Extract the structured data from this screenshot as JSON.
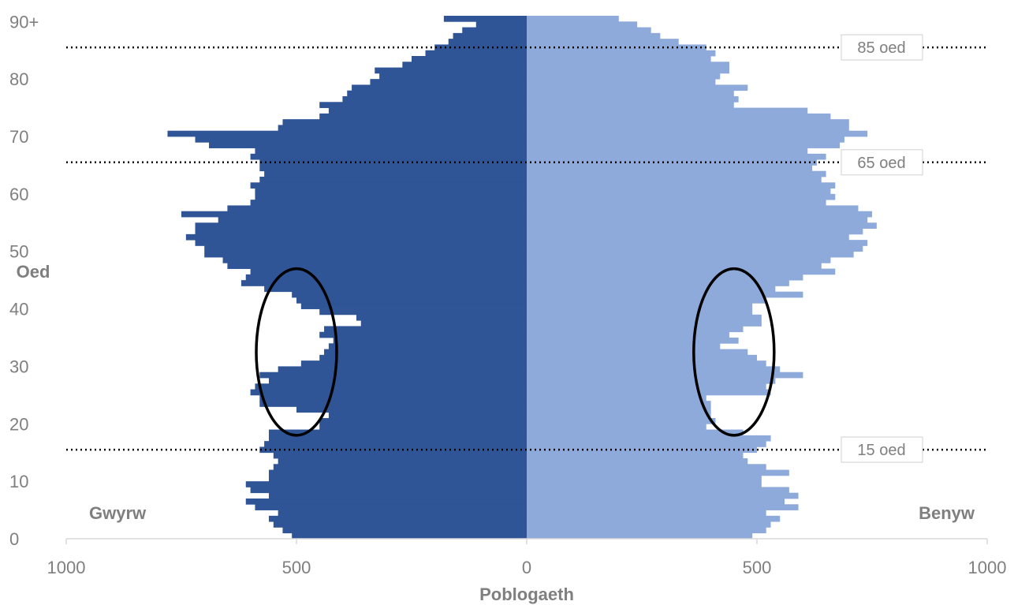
{
  "chart_data": {
    "type": "bar",
    "orientation": "horizontal population pyramid",
    "xlabel": "Poblogaeth",
    "ylabel": "Oed",
    "xlim": [
      -1000,
      1000
    ],
    "ylim": [
      0,
      91
    ],
    "x_tick_labels": [
      "1000",
      "500",
      "0",
      "500",
      "1000"
    ],
    "x_tick_values": [
      -1000,
      -500,
      0,
      500,
      1000
    ],
    "y_tick_labels": [
      "0",
      "10",
      "20",
      "30",
      "40",
      "50",
      "60",
      "70",
      "80",
      "90+"
    ],
    "y_tick_values": [
      0,
      10,
      20,
      30,
      40,
      50,
      60,
      70,
      80,
      90
    ],
    "ages": [
      0,
      1,
      2,
      3,
      4,
      5,
      6,
      7,
      8,
      9,
      10,
      11,
      12,
      13,
      14,
      15,
      16,
      17,
      18,
      19,
      20,
      21,
      22,
      23,
      24,
      25,
      26,
      27,
      28,
      29,
      30,
      31,
      32,
      33,
      34,
      35,
      36,
      37,
      38,
      39,
      40,
      41,
      42,
      43,
      44,
      45,
      46,
      47,
      48,
      49,
      50,
      51,
      52,
      53,
      54,
      55,
      56,
      57,
      58,
      59,
      60,
      61,
      62,
      63,
      64,
      65,
      66,
      67,
      68,
      69,
      70,
      71,
      72,
      73,
      74,
      75,
      76,
      77,
      78,
      79,
      80,
      81,
      82,
      83,
      84,
      85,
      86,
      87,
      88,
      89,
      90
    ],
    "series": [
      {
        "name": "Gwyrw",
        "color": "#2f5597",
        "values": [
          510,
          530,
          550,
          560,
          540,
          590,
          610,
          560,
          600,
          610,
          560,
          560,
          550,
          540,
          550,
          580,
          570,
          560,
          560,
          450,
          450,
          430,
          500,
          580,
          580,
          600,
          590,
          560,
          580,
          540,
          490,
          450,
          440,
          430,
          420,
          450,
          440,
          360,
          370,
          450,
          490,
          500,
          510,
          570,
          620,
          610,
          600,
          650,
          660,
          700,
          700,
          720,
          740,
          720,
          720,
          670,
          750,
          650,
          600,
          590,
          590,
          600,
          580,
          570,
          580,
          580,
          600,
          590,
          690,
          720,
          780,
          540,
          530,
          450,
          430,
          450,
          400,
          390,
          380,
          340,
          320,
          330,
          270,
          250,
          220,
          200,
          170,
          160,
          140,
          110,
          180
        ],
        "display_values": [
          -510,
          -530,
          -550,
          -560,
          -540,
          -590,
          -610,
          -560,
          -600,
          -610,
          -560,
          -560,
          -550,
          -540,
          -550,
          -580,
          -570,
          -560,
          -560,
          -450,
          -450,
          -430,
          -500,
          -580,
          -580,
          -600,
          -590,
          -560,
          -580,
          -540,
          -490,
          -450,
          -440,
          -430,
          -420,
          -450,
          -440,
          -360,
          -370,
          -450,
          -490,
          -500,
          -510,
          -570,
          -620,
          -610,
          -600,
          -650,
          -660,
          -700,
          -700,
          -720,
          -740,
          -720,
          -720,
          -670,
          -750,
          -650,
          -600,
          -590,
          -590,
          -600,
          -580,
          -570,
          -580,
          -580,
          -600,
          -590,
          -690,
          -720,
          -780,
          -540,
          -530,
          -450,
          -430,
          -450,
          -400,
          -390,
          -380,
          -340,
          -320,
          -330,
          -270,
          -250,
          -220,
          -200,
          -170,
          -160,
          -140,
          -110,
          -180
        ]
      },
      {
        "name": "Benyw",
        "color": "#8eaadb",
        "values": [
          490,
          520,
          530,
          550,
          520,
          590,
          560,
          590,
          570,
          510,
          510,
          570,
          520,
          480,
          470,
          500,
          520,
          530,
          470,
          390,
          410,
          400,
          400,
          400,
          390,
          530,
          520,
          540,
          600,
          550,
          520,
          500,
          480,
          420,
          460,
          440,
          470,
          510,
          510,
          490,
          490,
          520,
          600,
          540,
          570,
          600,
          670,
          640,
          660,
          710,
          730,
          740,
          700,
          730,
          760,
          740,
          750,
          720,
          650,
          670,
          660,
          670,
          640,
          650,
          620,
          630,
          650,
          610,
          680,
          690,
          740,
          700,
          700,
          660,
          610,
          450,
          460,
          450,
          480,
          410,
          420,
          440,
          440,
          400,
          410,
          390,
          330,
          290,
          270,
          240,
          200
        ]
      }
    ],
    "reference_lines": [
      {
        "age": 85,
        "label": "85 oed"
      },
      {
        "age": 65,
        "label": "65 oed"
      },
      {
        "age": 15,
        "label": "15 oed"
      }
    ],
    "side_labels": {
      "left": "Gwyrw",
      "right": "Benyw"
    },
    "annotations": [
      {
        "type": "ellipse",
        "side": "Gwyrw",
        "age_range": [
          18,
          47
        ],
        "x_center": -500
      },
      {
        "type": "ellipse",
        "side": "Benyw",
        "age_range": [
          18,
          47
        ],
        "x_center": 450
      }
    ],
    "colors": {
      "male": "#2f5597",
      "female": "#8eaadb",
      "text": "#7f7f7f",
      "axis": "#d9d9d9"
    }
  }
}
